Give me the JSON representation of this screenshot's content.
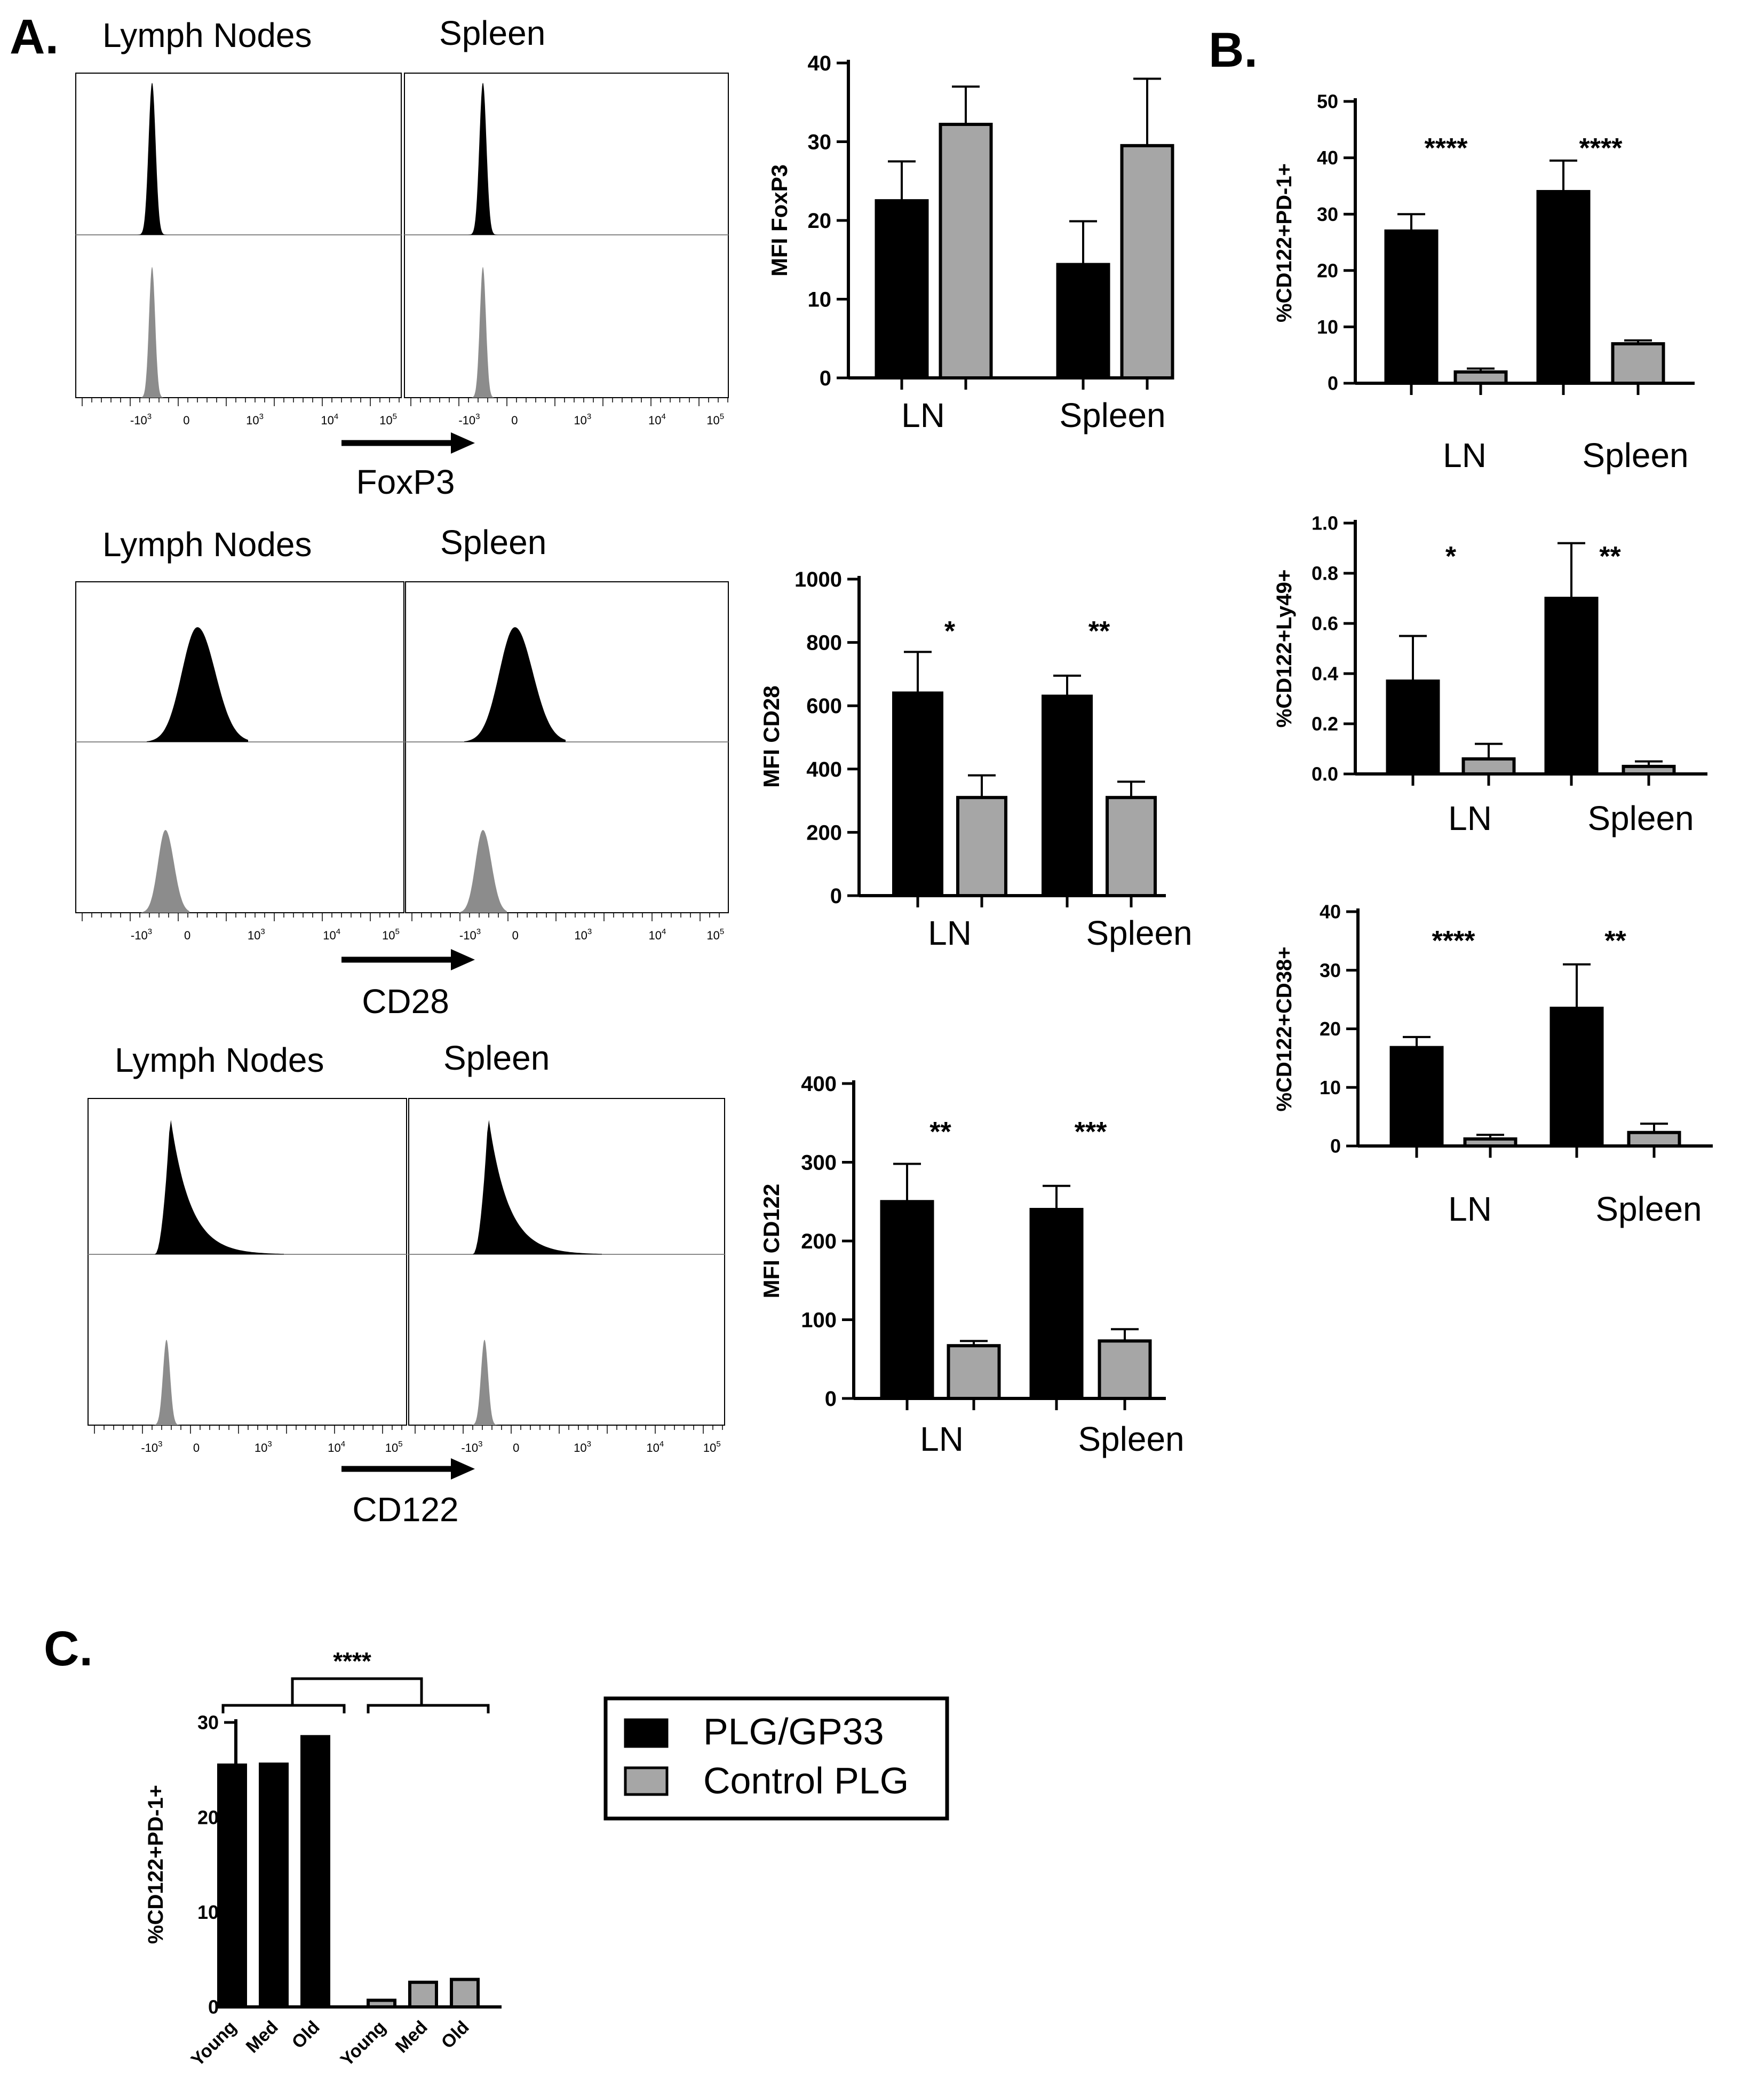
{
  "colors": {
    "black_bar": "#000000",
    "grey_bar": "#a6a6a6",
    "axis": "#000000"
  },
  "panels": {
    "A": "A.",
    "B": "B.",
    "C": "C."
  },
  "legend": {
    "items": [
      {
        "label": "PLG/GP33",
        "color": "#000000"
      },
      {
        "label": "Control PLG",
        "color": "#a6a6a6"
      }
    ]
  },
  "histograms": [
    {
      "titles": [
        "Lymph Nodes",
        "Spleen"
      ],
      "marker": "FoxP3",
      "ticks": [
        "-10",
        "0",
        "10",
        "10",
        "10"
      ],
      "tick_exps": [
        "3",
        "",
        "3",
        "4",
        "5"
      ]
    },
    {
      "titles": [
        "Lymph Nodes",
        "Spleen"
      ],
      "marker": "CD28",
      "ticks": [
        "-10",
        "0",
        "10",
        "10",
        "10"
      ],
      "tick_exps": [
        "3",
        "",
        "3",
        "4",
        "5"
      ]
    },
    {
      "titles": [
        "Lymph Nodes",
        "Spleen"
      ],
      "marker": "CD122",
      "ticks": [
        "-10",
        "0",
        "10",
        "10",
        "10"
      ],
      "tick_exps": [
        "3",
        "",
        "3",
        "4",
        "5"
      ]
    }
  ],
  "chart_data": [
    {
      "id": "A1",
      "type": "bar",
      "ylabel": "MFI FoxP3",
      "ylim": [
        0,
        40
      ],
      "yticks": [
        0,
        10,
        20,
        30,
        40
      ],
      "categories": [
        "LN",
        "Spleen"
      ],
      "bars": [
        {
          "v": 22.5,
          "e": 5,
          "c": "black"
        },
        {
          "v": 32.2,
          "e": 4.8,
          "c": "grey"
        },
        {
          "v": 14.4,
          "e": 5.5,
          "c": "black"
        },
        {
          "v": 29.5,
          "e": 8.5,
          "c": "grey"
        }
      ],
      "sig": [
        "",
        ""
      ]
    },
    {
      "id": "A2",
      "type": "bar",
      "ylabel": "MFI CD28",
      "ylim": [
        0,
        1000
      ],
      "yticks": [
        0,
        200,
        400,
        600,
        800,
        1000
      ],
      "categories": [
        "LN",
        "Spleen"
      ],
      "bars": [
        {
          "v": 640,
          "e": 130,
          "c": "black"
        },
        {
          "v": 310,
          "e": 70,
          "c": "grey"
        },
        {
          "v": 630,
          "e": 65,
          "c": "black"
        },
        {
          "v": 310,
          "e": 50,
          "c": "grey"
        }
      ],
      "sig": [
        "*",
        "**"
      ]
    },
    {
      "id": "A3",
      "type": "bar",
      "ylabel": "MFI CD122",
      "ylim": [
        0,
        400
      ],
      "yticks": [
        0,
        100,
        200,
        300,
        400
      ],
      "categories": [
        "LN",
        "Spleen"
      ],
      "bars": [
        {
          "v": 250,
          "e": 48,
          "c": "black"
        },
        {
          "v": 67,
          "e": 6,
          "c": "grey"
        },
        {
          "v": 240,
          "e": 30,
          "c": "black"
        },
        {
          "v": 73,
          "e": 15,
          "c": "grey"
        }
      ],
      "sig": [
        "**",
        "***"
      ]
    },
    {
      "id": "B1",
      "type": "bar",
      "ylabel": "%CD122+PD-1+",
      "ylim": [
        0,
        50
      ],
      "yticks": [
        0,
        10,
        20,
        30,
        40,
        50
      ],
      "categories": [
        "LN",
        "Spleen"
      ],
      "bars": [
        {
          "v": 27,
          "e": 3,
          "c": "black"
        },
        {
          "v": 2,
          "e": 0.6,
          "c": "grey"
        },
        {
          "v": 34,
          "e": 5.5,
          "c": "black"
        },
        {
          "v": 7,
          "e": 0.6,
          "c": "grey"
        }
      ],
      "sig": [
        "****",
        "****"
      ]
    },
    {
      "id": "B2",
      "type": "bar",
      "ylabel": "%CD122+Ly49+",
      "ylim": [
        0,
        1
      ],
      "yticks": [
        "0.0",
        "0.2",
        "0.4",
        "0.6",
        "0.8",
        "1.0"
      ],
      "categories": [
        "LN",
        "Spleen"
      ],
      "bars": [
        {
          "v": 0.37,
          "e": 0.18,
          "c": "black"
        },
        {
          "v": 0.06,
          "e": 0.06,
          "c": "grey"
        },
        {
          "v": 0.7,
          "e": 0.22,
          "c": "black"
        },
        {
          "v": 0.03,
          "e": 0.02,
          "c": "grey"
        }
      ],
      "sig": [
        "*",
        "**"
      ]
    },
    {
      "id": "B3",
      "type": "bar",
      "ylabel": "%CD122+CD38+",
      "ylim": [
        0,
        40
      ],
      "yticks": [
        0,
        10,
        20,
        30,
        40
      ],
      "categories": [
        "LN",
        "Spleen"
      ],
      "bars": [
        {
          "v": 16.8,
          "e": 1.8,
          "c": "black"
        },
        {
          "v": 1.2,
          "e": 0.7,
          "c": "grey"
        },
        {
          "v": 23.5,
          "e": 7.5,
          "c": "black"
        },
        {
          "v": 2.3,
          "e": 1.5,
          "c": "grey"
        }
      ],
      "sig": [
        "****",
        "**"
      ]
    },
    {
      "id": "C",
      "type": "bar",
      "ylabel": "%CD122+PD-1+",
      "ylim": [
        0,
        30
      ],
      "yticks": [
        0,
        10,
        20,
        30
      ],
      "categories": [
        "Young",
        "Med",
        "Old",
        "Young",
        "Med",
        "Old"
      ],
      "bars": [
        {
          "v": 25.5,
          "c": "black"
        },
        {
          "v": 25.6,
          "c": "black"
        },
        {
          "v": 28.5,
          "c": "black"
        },
        {
          "v": 0.7,
          "c": "grey"
        },
        {
          "v": 2.6,
          "c": "grey"
        },
        {
          "v": 2.9,
          "c": "grey"
        }
      ],
      "sig": [
        "****"
      ]
    }
  ]
}
